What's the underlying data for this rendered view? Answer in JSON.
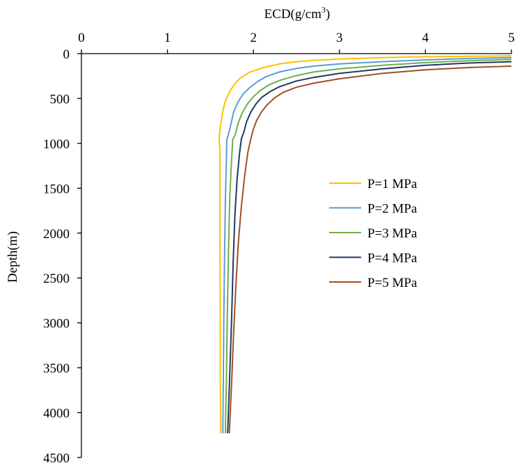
{
  "chart_data": {
    "type": "line",
    "xlabel": "ECD(g/cm",
    "xlabel_sup": "3",
    "xlabel_close": ")",
    "ylabel": "Depth(m)",
    "x_axis_position": "top",
    "y_axis_inverted": true,
    "xlim": [
      0,
      5
    ],
    "ylim": [
      0,
      4500
    ],
    "x_ticks": [
      0,
      1,
      2,
      3,
      4,
      5
    ],
    "x_tick_labels": [
      "0",
      "1",
      "2",
      "3",
      "4",
      "5"
    ],
    "y_ticks": [
      0,
      500,
      1000,
      1500,
      2000,
      2500,
      3000,
      3500,
      4000,
      4500
    ],
    "y_tick_labels": [
      "0",
      "500",
      "1000",
      "1500",
      "2000",
      "2500",
      "3000",
      "3500",
      "4000",
      "4500"
    ],
    "grid": false,
    "legend_position": "middle-right",
    "series": [
      {
        "name": "P=1 MPa",
        "color": "#FFC000",
        "points": [
          [
            5.0,
            25
          ],
          [
            4.5,
            30
          ],
          [
            4.0,
            35
          ],
          [
            3.5,
            45
          ],
          [
            3.0,
            60
          ],
          [
            2.7,
            75
          ],
          [
            2.5,
            90
          ],
          [
            2.3,
            115
          ],
          [
            2.1,
            160
          ],
          [
            1.95,
            210
          ],
          [
            1.85,
            270
          ],
          [
            1.78,
            340
          ],
          [
            1.72,
            430
          ],
          [
            1.67,
            540
          ],
          [
            1.64,
            660
          ],
          [
            1.62,
            790
          ],
          [
            1.6,
            930
          ],
          [
            1.61,
            1100
          ],
          [
            1.61,
            1400
          ],
          [
            1.61,
            2000
          ],
          [
            1.615,
            3000
          ],
          [
            1.615,
            3700
          ],
          [
            1.62,
            4120
          ],
          [
            1.62,
            4230
          ]
        ]
      },
      {
        "name": "P=2 MPa",
        "color": "#5B9BD5",
        "points": [
          [
            5.0,
            45
          ],
          [
            4.5,
            55
          ],
          [
            4.0,
            70
          ],
          [
            3.5,
            90
          ],
          [
            3.0,
            115
          ],
          [
            2.7,
            140
          ],
          [
            2.5,
            165
          ],
          [
            2.3,
            205
          ],
          [
            2.15,
            255
          ],
          [
            2.05,
            310
          ],
          [
            1.96,
            375
          ],
          [
            1.88,
            450
          ],
          [
            1.82,
            540
          ],
          [
            1.77,
            650
          ],
          [
            1.74,
            780
          ],
          [
            1.71,
            900
          ],
          [
            1.69,
            960
          ],
          [
            1.685,
            1200
          ],
          [
            1.675,
            1600
          ],
          [
            1.665,
            2200
          ],
          [
            1.655,
            3000
          ],
          [
            1.65,
            3700
          ],
          [
            1.645,
            4120
          ],
          [
            1.645,
            4230
          ]
        ]
      },
      {
        "name": "P=3 MPa",
        "color": "#70AD47",
        "points": [
          [
            5.0,
            65
          ],
          [
            4.5,
            80
          ],
          [
            4.0,
            100
          ],
          [
            3.5,
            130
          ],
          [
            3.0,
            170
          ],
          [
            2.7,
            205
          ],
          [
            2.5,
            245
          ],
          [
            2.3,
            300
          ],
          [
            2.18,
            350
          ],
          [
            2.08,
            410
          ],
          [
            2.0,
            480
          ],
          [
            1.93,
            560
          ],
          [
            1.87,
            660
          ],
          [
            1.82,
            780
          ],
          [
            1.79,
            900
          ],
          [
            1.76,
            960
          ],
          [
            1.745,
            1200
          ],
          [
            1.725,
            1600
          ],
          [
            1.71,
            2200
          ],
          [
            1.695,
            3000
          ],
          [
            1.685,
            3700
          ],
          [
            1.675,
            4120
          ],
          [
            1.675,
            4230
          ]
        ]
      },
      {
        "name": "P=4 MPa",
        "color": "#203864",
        "points": [
          [
            5.0,
            90
          ],
          [
            4.5,
            105
          ],
          [
            4.0,
            130
          ],
          [
            3.5,
            170
          ],
          [
            3.0,
            220
          ],
          [
            2.7,
            265
          ],
          [
            2.5,
            305
          ],
          [
            2.3,
            370
          ],
          [
            2.2,
            420
          ],
          [
            2.1,
            485
          ],
          [
            2.03,
            560
          ],
          [
            1.97,
            650
          ],
          [
            1.92,
            760
          ],
          [
            1.89,
            870
          ],
          [
            1.86,
            950
          ],
          [
            1.84,
            1100
          ],
          [
            1.81,
            1400
          ],
          [
            1.785,
            1800
          ],
          [
            1.765,
            2300
          ],
          [
            1.745,
            3000
          ],
          [
            1.72,
            3700
          ],
          [
            1.705,
            4120
          ],
          [
            1.7,
            4230
          ]
        ]
      },
      {
        "name": "P=5 MPa",
        "color": "#A04F22",
        "points": [
          [
            5.0,
            140
          ],
          [
            4.5,
            155
          ],
          [
            4.0,
            180
          ],
          [
            3.5,
            220
          ],
          [
            3.0,
            280
          ],
          [
            2.7,
            330
          ],
          [
            2.5,
            375
          ],
          [
            2.35,
            430
          ],
          [
            2.25,
            490
          ],
          [
            2.17,
            560
          ],
          [
            2.1,
            640
          ],
          [
            2.04,
            740
          ],
          [
            2.0,
            840
          ],
          [
            1.97,
            950
          ],
          [
            1.935,
            1100
          ],
          [
            1.9,
            1350
          ],
          [
            1.86,
            1700
          ],
          [
            1.825,
            2100
          ],
          [
            1.795,
            2600
          ],
          [
            1.77,
            3100
          ],
          [
            1.745,
            3700
          ],
          [
            1.725,
            4120
          ],
          [
            1.72,
            4230
          ]
        ]
      }
    ]
  }
}
